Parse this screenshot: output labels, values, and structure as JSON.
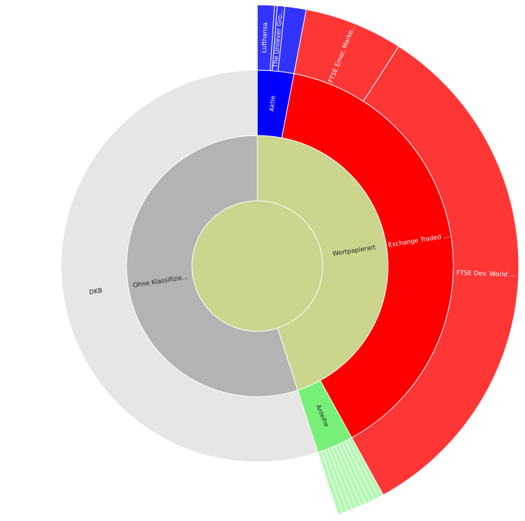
{
  "chart_data": {
    "type": "sunburst",
    "root": {
      "label": null,
      "value": 100,
      "color": "#cbd58e",
      "children": [
        {
          "label": "Wertpapierart",
          "value": 45,
          "color": "#cbd58e",
          "children": [
            {
              "label": "Aktie",
              "value": 3.0,
              "color": "#0000ff",
              "children": [
                {
                  "label": "Lufthansa",
                  "value": 1.05,
                  "color": "#3333ff"
                },
                {
                  "label": null,
                  "value": 0.17,
                  "color": "#3333ff"
                },
                {
                  "label": "The Unilever Gro...",
                  "value": 0.47,
                  "color": "#3333ff"
                },
                {
                  "label": null,
                  "value": 1.31,
                  "color": "#3333ff"
                }
              ]
            },
            {
              "label": "Exchange Traded ...",
              "value": 39.0,
              "color": "#ff0000",
              "children": [
                {
                  "label": "FTSE Emer. Marke...",
                  "value": 6.1,
                  "color": "#ff3636"
                },
                {
                  "label": "FTSE Dev. World ...",
                  "value": 32.9,
                  "color": "#ff3636"
                }
              ]
            },
            {
              "label": "Anleihe",
              "value": 3.0,
              "color": "#77f077",
              "children": [
                {
                  "label": null,
                  "value": 0.3,
                  "color": "#b3f8b3"
                },
                {
                  "label": null,
                  "value": 0.3,
                  "color": "#b3f8b3"
                },
                {
                  "label": null,
                  "value": 0.3,
                  "color": "#b3f8b3"
                },
                {
                  "label": null,
                  "value": 0.3,
                  "color": "#b3f8b3"
                },
                {
                  "label": null,
                  "value": 0.3,
                  "color": "#b3f8b3"
                },
                {
                  "label": null,
                  "value": 0.3,
                  "color": "#b3f8b3"
                },
                {
                  "label": null,
                  "value": 0.3,
                  "color": "#b3f8b3"
                },
                {
                  "label": null,
                  "value": 0.3,
                  "color": "#b3f8b3"
                },
                {
                  "label": null,
                  "value": 0.3,
                  "color": "#b3f8b3"
                },
                {
                  "label": null,
                  "value": 0.3,
                  "color": "#b3f8b3"
                }
              ]
            }
          ]
        },
        {
          "label": "Ohne Klassifizie...",
          "value": 55,
          "color": "#b3b3b3",
          "children": [
            {
              "label": "DKB",
              "value": 55,
              "color": "#e6e6e6"
            }
          ]
        }
      ]
    }
  }
}
